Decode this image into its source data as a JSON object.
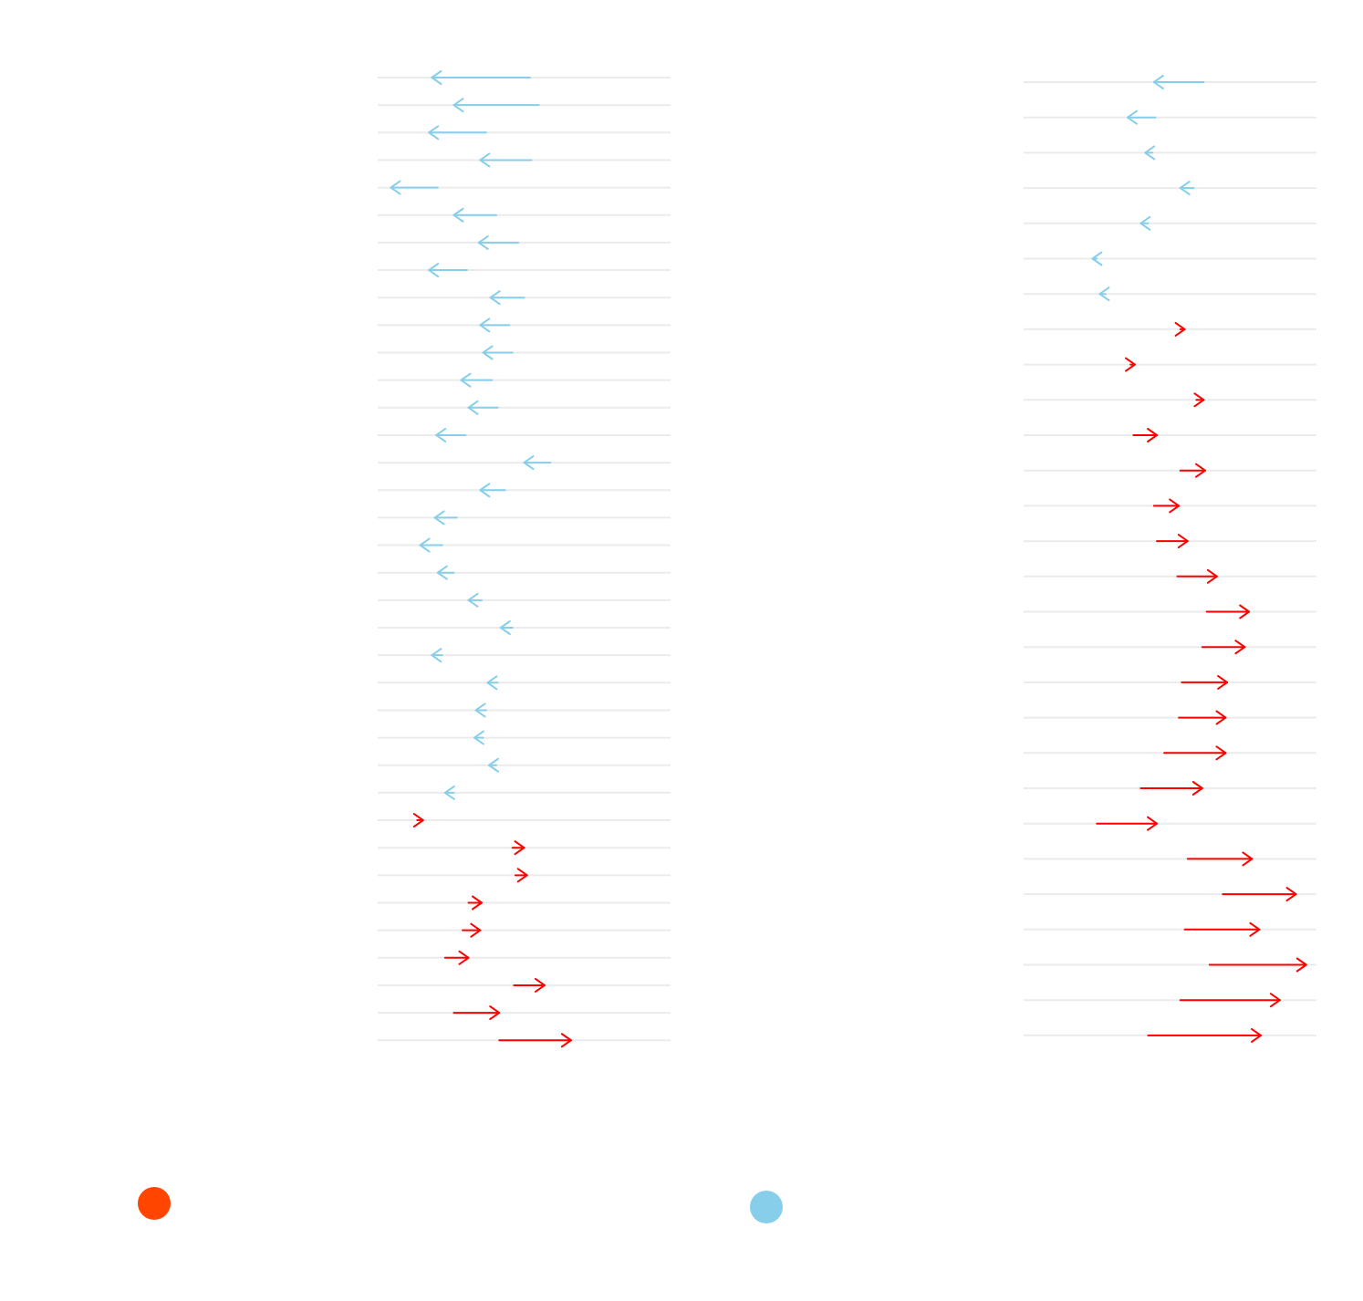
{
  "colors": {
    "decrease": "#87CEEB",
    "increase": "#FF0000",
    "gridline": "#EBEBEB",
    "legend_orange": "#FF4500",
    "legend_blue": "#87CEEB"
  },
  "legend": [
    {
      "label": "",
      "color": "#FF4500",
      "icon": "circle-icon"
    },
    {
      "label": "",
      "color": "#87CEEB",
      "icon": "circle-icon"
    }
  ],
  "chart_data": [
    {
      "type": "arrow",
      "title": "",
      "xlabel": "",
      "ylabel": "",
      "grid": true,
      "xlim": [
        0,
        100
      ],
      "rows": [
        {
          "start": 52.0,
          "end": 18.5
        },
        {
          "start": 55.0,
          "end": 26.0
        },
        {
          "start": 37.0,
          "end": 17.5
        },
        {
          "start": 52.5,
          "end": 35.0
        },
        {
          "start": 20.5,
          "end": 4.5
        },
        {
          "start": 40.5,
          "end": 26.0
        },
        {
          "start": 48.0,
          "end": 34.5
        },
        {
          "start": 30.5,
          "end": 17.5
        },
        {
          "start": 50.0,
          "end": 38.5
        },
        {
          "start": 45.0,
          "end": 35.0
        },
        {
          "start": 46.0,
          "end": 36.0
        },
        {
          "start": 39.0,
          "end": 28.5
        },
        {
          "start": 41.0,
          "end": 31.0
        },
        {
          "start": 30.0,
          "end": 20.0
        },
        {
          "start": 59.0,
          "end": 50.0
        },
        {
          "start": 43.5,
          "end": 35.0
        },
        {
          "start": 27.0,
          "end": 19.5
        },
        {
          "start": 22.0,
          "end": 14.5
        },
        {
          "start": 26.0,
          "end": 20.5
        },
        {
          "start": 35.5,
          "end": 31.0
        },
        {
          "start": 46.0,
          "end": 42.0
        },
        {
          "start": 22.0,
          "end": 18.5
        },
        {
          "start": 41.0,
          "end": 37.5
        },
        {
          "start": 37.0,
          "end": 33.5
        },
        {
          "start": 36.0,
          "end": 33.0
        },
        {
          "start": 40.5,
          "end": 38.0
        },
        {
          "start": 26.0,
          "end": 23.0
        },
        {
          "start": 13.5,
          "end": 15.5
        },
        {
          "start": 46.0,
          "end": 50.0
        },
        {
          "start": 47.0,
          "end": 51.0
        },
        {
          "start": 31.0,
          "end": 35.5
        },
        {
          "start": 29.0,
          "end": 35.0
        },
        {
          "start": 23.0,
          "end": 31.0
        },
        {
          "start": 46.5,
          "end": 57.0
        },
        {
          "start": 26.0,
          "end": 41.5
        },
        {
          "start": 41.5,
          "end": 66.0
        }
      ]
    },
    {
      "type": "arrow",
      "title": "",
      "xlabel": "",
      "ylabel": "",
      "grid": true,
      "xlim": [
        0,
        100
      ],
      "rows": [
        {
          "start": 61.5,
          "end": 44.5
        },
        {
          "start": 45.0,
          "end": 35.5
        },
        {
          "start": 44.0,
          "end": 41.5
        },
        {
          "start": 58.0,
          "end": 53.5
        },
        {
          "start": 42.5,
          "end": 40.0
        },
        {
          "start": 25.0,
          "end": 23.5
        },
        {
          "start": 28.0,
          "end": 26.0
        },
        {
          "start": 53.5,
          "end": 55.0
        },
        {
          "start": 36.5,
          "end": 38.0
        },
        {
          "start": 59.0,
          "end": 61.5
        },
        {
          "start": 37.5,
          "end": 45.5
        },
        {
          "start": 53.5,
          "end": 62.0
        },
        {
          "start": 44.5,
          "end": 53.0
        },
        {
          "start": 45.5,
          "end": 56.0
        },
        {
          "start": 52.5,
          "end": 66.0
        },
        {
          "start": 62.5,
          "end": 77.0
        },
        {
          "start": 61.0,
          "end": 75.5
        },
        {
          "start": 54.0,
          "end": 69.5
        },
        {
          "start": 53.0,
          "end": 69.0
        },
        {
          "start": 48.0,
          "end": 69.0
        },
        {
          "start": 40.0,
          "end": 61.0
        },
        {
          "start": 25.0,
          "end": 45.5
        },
        {
          "start": 56.0,
          "end": 78.0
        },
        {
          "start": 68.0,
          "end": 93.0
        },
        {
          "start": 55.0,
          "end": 80.5
        },
        {
          "start": 63.5,
          "end": 96.5
        },
        {
          "start": 53.5,
          "end": 87.5
        },
        {
          "start": 42.5,
          "end": 81.0
        }
      ]
    }
  ]
}
